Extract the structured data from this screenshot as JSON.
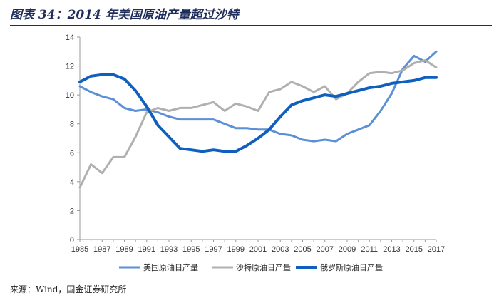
{
  "header": {
    "title": "图表 34：2014 年美国原油产量超过沙特"
  },
  "footer": {
    "source": "来源：Wind，国金证券研究所"
  },
  "chart_data": {
    "type": "line",
    "title": "图表 34：2014 年美国原油产量超过沙特",
    "xlabel": "",
    "ylabel": "",
    "ylim": [
      0,
      14
    ],
    "yticks": [
      0,
      2,
      4,
      6,
      8,
      10,
      12,
      14
    ],
    "xlim": [
      1985,
      2017
    ],
    "xticks": [
      "1985",
      "1987",
      "1989",
      "1991",
      "1993",
      "1995",
      "1997",
      "1999",
      "2001",
      "2003",
      "2005",
      "2007",
      "2009",
      "2011",
      "2013",
      "2015",
      "2017"
    ],
    "grid": false,
    "legend_position": "bottom",
    "x": [
      1985,
      1986,
      1987,
      1988,
      1989,
      1990,
      1991,
      1992,
      1993,
      1994,
      1995,
      1996,
      1997,
      1998,
      1999,
      2000,
      2001,
      2002,
      2003,
      2004,
      2005,
      2006,
      2007,
      2008,
      2009,
      2010,
      2011,
      2012,
      2013,
      2014,
      2015,
      2016,
      2017
    ],
    "series": [
      {
        "name": "美国原油日产量",
        "color": "#5b8fd6",
        "width": 3,
        "values": [
          10.6,
          10.2,
          9.9,
          9.7,
          9.1,
          8.9,
          9.0,
          8.8,
          8.5,
          8.3,
          8.3,
          8.3,
          8.3,
          8.0,
          7.7,
          7.7,
          7.6,
          7.6,
          7.3,
          7.2,
          6.9,
          6.8,
          6.9,
          6.8,
          7.3,
          7.6,
          7.9,
          8.9,
          10.1,
          11.8,
          12.7,
          12.3,
          13.0
        ]
      },
      {
        "name": "沙特原油日产量",
        "color": "#b0b0b0",
        "width": 3,
        "values": [
          3.6,
          5.2,
          4.6,
          5.7,
          5.7,
          7.1,
          8.8,
          9.1,
          8.9,
          9.1,
          9.1,
          9.3,
          9.5,
          8.9,
          9.4,
          9.2,
          8.9,
          10.2,
          10.4,
          10.9,
          10.6,
          10.2,
          10.6,
          9.7,
          10.1,
          10.9,
          11.5,
          11.6,
          11.5,
          11.7,
          12.2,
          12.4,
          11.9
        ]
      },
      {
        "name": "俄罗斯原油日产量",
        "color": "#0f5fbf",
        "width": 4,
        "values": [
          10.9,
          11.3,
          11.4,
          11.4,
          11.1,
          10.3,
          9.2,
          7.9,
          7.1,
          6.3,
          6.2,
          6.1,
          6.2,
          6.1,
          6.1,
          6.5,
          7.0,
          7.6,
          8.5,
          9.3,
          9.6,
          9.8,
          10.0,
          9.9,
          10.1,
          10.3,
          10.5,
          10.6,
          10.8,
          10.9,
          11.0,
          11.2,
          11.2
        ]
      }
    ]
  }
}
